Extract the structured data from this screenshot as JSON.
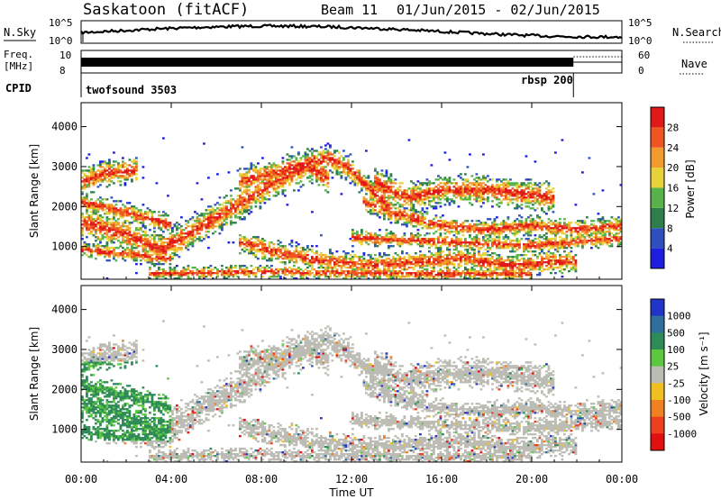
{
  "header": {
    "station": "Saskatoon (fitACF)",
    "beam": "Beam 11",
    "date_range": "01/Jun/2015 - 02/Jun/2015"
  },
  "noise_panel": {
    "left_label": "N.Sky",
    "left_ticks": [
      "10^5",
      "10^0"
    ],
    "right_ticks": [
      "10^5",
      "10^0"
    ],
    "right_label": "N.Search"
  },
  "freq_panel": {
    "left_label_line1": "Freq.",
    "left_label_line2": "[MHz]",
    "left_ticks": [
      "10",
      "8"
    ],
    "right_ticks": [
      "60",
      "0"
    ],
    "right_label": "Nave"
  },
  "cpid_panel": {
    "label": "CPID",
    "programs": [
      "twofsound 3503",
      "rbsp 200"
    ],
    "switch_time_hours": 21.85
  },
  "chart_data": [
    {
      "type": "heatmap",
      "name": "power",
      "ylabel": "Slant Range [km]",
      "yticks": [
        "1000",
        "2000",
        "3000",
        "4000"
      ],
      "ylim": [
        180,
        4600
      ],
      "xlim_hours": [
        0,
        24
      ],
      "colorbar_label": "Power [dB]",
      "colorbar_ticks": [
        "4",
        "8",
        "12",
        "16",
        "20",
        "24",
        "28"
      ],
      "colorbar_range": [
        0,
        32
      ],
      "colors": [
        "#1e1ee0",
        "#2e4fc0",
        "#2d7e4a",
        "#58b24a",
        "#e8d23a",
        "#f29a2c",
        "#ee5520",
        "#e01818"
      ]
    },
    {
      "type": "heatmap",
      "name": "velocity",
      "ylabel": "Slant Range [km]",
      "yticks": [
        "1000",
        "2000",
        "3000",
        "4000"
      ],
      "ylim": [
        180,
        4600
      ],
      "xlim_hours": [
        0,
        24
      ],
      "colorbar_label": "Velocity [m s⁻¹]",
      "colorbar_ticks": [
        "1000",
        "500",
        "100",
        "25",
        "-25",
        "-100",
        "-500",
        "-1000"
      ],
      "colors": [
        "#2233c8",
        "#2f6f9e",
        "#2e8b57",
        "#5cc840",
        "#bcbcb4",
        "#f0c020",
        "#f08020",
        "#ee4020",
        "#e01010"
      ]
    }
  ],
  "x_axis": {
    "ticks": [
      "00:00",
      "04:00",
      "08:00",
      "12:00",
      "16:00",
      "20:00",
      "00:00"
    ],
    "label": "Time UT"
  }
}
